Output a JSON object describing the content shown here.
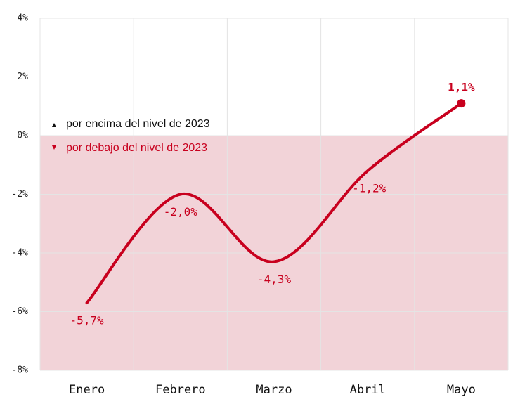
{
  "chart_data": {
    "type": "line",
    "categories": [
      "Enero",
      "Febrero",
      "Marzo",
      "Abril",
      "Mayo"
    ],
    "values": [
      -5.7,
      -2.0,
      -4.3,
      -1.2,
      1.1
    ],
    "value_labels": [
      "-5,7%",
      "-2,0%",
      "-4,3%",
      "-1,2%",
      "1,1%"
    ],
    "color": "#c8001e",
    "ylim": [
      -8,
      4
    ],
    "yticks": [
      {
        "value": -8,
        "label": "-8%"
      },
      {
        "value": -6,
        "label": "-6%"
      },
      {
        "value": -4,
        "label": "-4%"
      },
      {
        "value": -2,
        "label": "-2%"
      },
      {
        "value": 0,
        "label": "0%"
      },
      {
        "value": 2,
        "label": "2%"
      },
      {
        "value": 4,
        "label": "4%"
      }
    ],
    "grid": true,
    "annotations": [
      "por encima del nivel de 2023",
      "por debajo del nivel de 2023"
    ]
  }
}
